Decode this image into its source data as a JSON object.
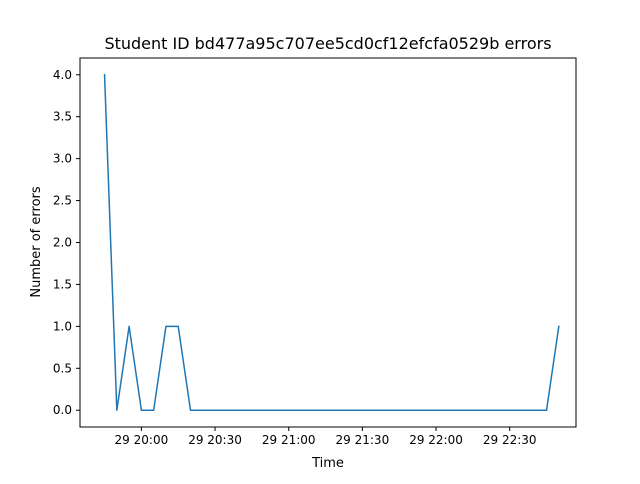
{
  "chart_data": {
    "type": "line",
    "title": "Student ID bd477a95c707ee5cd0cf12efcfa0529b errors",
    "xlabel": "Time",
    "ylabel": "Number of errors",
    "x_unit": "time",
    "xlim": [
      "19:35",
      "22:57"
    ],
    "ylim": [
      -0.2,
      4.2
    ],
    "grid": false,
    "legend": "none",
    "x_ticks": [
      {
        "value": "20:00",
        "label": "29 20:00"
      },
      {
        "value": "20:30",
        "label": "29 20:30"
      },
      {
        "value": "21:00",
        "label": "29 21:00"
      },
      {
        "value": "21:30",
        "label": "29 21:30"
      },
      {
        "value": "22:00",
        "label": "29 22:00"
      },
      {
        "value": "22:30",
        "label": "29 22:30"
      }
    ],
    "y_ticks": [
      {
        "value": 0.0,
        "label": "0.0"
      },
      {
        "value": 0.5,
        "label": "0.5"
      },
      {
        "value": 1.0,
        "label": "1.0"
      },
      {
        "value": 1.5,
        "label": "1.5"
      },
      {
        "value": 2.0,
        "label": "2.0"
      },
      {
        "value": 2.5,
        "label": "2.5"
      },
      {
        "value": 3.0,
        "label": "3.0"
      },
      {
        "value": 3.5,
        "label": "3.5"
      },
      {
        "value": 4.0,
        "label": "4.0"
      }
    ],
    "series": [
      {
        "color": "#1f77b4",
        "x": [
          "19:45",
          "19:50",
          "19:55",
          "20:00",
          "20:05",
          "20:10",
          "20:15",
          "20:20",
          "20:25",
          "20:30",
          "20:35",
          "20:40",
          "20:45",
          "20:50",
          "20:55",
          "21:00",
          "21:05",
          "21:10",
          "21:15",
          "21:20",
          "21:25",
          "21:30",
          "21:35",
          "21:40",
          "21:45",
          "21:50",
          "21:55",
          "22:00",
          "22:05",
          "22:10",
          "22:15",
          "22:20",
          "22:25",
          "22:30",
          "22:35",
          "22:40",
          "22:45",
          "22:50"
        ],
        "values": [
          4,
          0,
          1,
          0,
          0,
          1,
          1,
          0,
          0,
          0,
          0,
          0,
          0,
          0,
          0,
          0,
          0,
          0,
          0,
          0,
          0,
          0,
          0,
          0,
          0,
          0,
          0,
          0,
          0,
          0,
          0,
          0,
          0,
          0,
          0,
          0,
          0,
          1
        ]
      }
    ]
  }
}
